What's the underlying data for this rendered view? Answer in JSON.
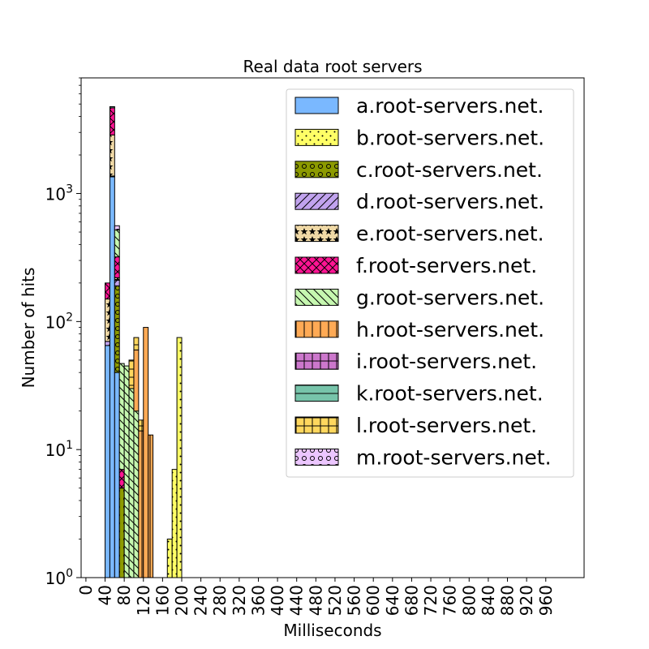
{
  "chart_data": {
    "type": "bar",
    "stacked": true,
    "title": "Real data root servers",
    "xlabel": "Milliseconds",
    "ylabel": "Number of hits",
    "y_scale": "log",
    "ylim": [
      1,
      8000
    ],
    "xlim": [
      -10,
      1040
    ],
    "bin_width": 10,
    "x_ticks": [
      0,
      40,
      80,
      120,
      160,
      200,
      240,
      280,
      320,
      360,
      400,
      440,
      480,
      520,
      560,
      600,
      640,
      680,
      720,
      760,
      800,
      840,
      880,
      920,
      960
    ],
    "y_ticks": [
      {
        "value": 1,
        "base": "10",
        "exp": "0"
      },
      {
        "value": 10,
        "base": "10",
        "exp": "1"
      },
      {
        "value": 100,
        "base": "10",
        "exp": "2"
      },
      {
        "value": 1000,
        "base": "10",
        "exp": "3"
      }
    ],
    "legend_position": "upper-right",
    "bin_starts": [
      40,
      50,
      60,
      70,
      80,
      90,
      100,
      110,
      120,
      130,
      170,
      180,
      190
    ],
    "series": [
      {
        "name": "a.root-servers.net.",
        "color": "#7ab8ff",
        "hatch": "none",
        "values": [
          65,
          1350,
          40,
          0,
          0,
          0,
          0,
          0,
          0,
          0,
          0,
          0,
          0
        ]
      },
      {
        "name": "b.root-servers.net.",
        "color": "#ffff66",
        "hatch": "dots",
        "values": [
          0,
          0,
          0,
          0,
          0,
          0,
          0,
          0,
          0,
          0,
          2,
          7,
          75
        ]
      },
      {
        "name": "c.root-servers.net.",
        "color": "#8c9a00",
        "hatch": "circles",
        "values": [
          0,
          0,
          150,
          5,
          0,
          0,
          0,
          0,
          0,
          0,
          0,
          0,
          0
        ]
      },
      {
        "name": "d.root-servers.net.",
        "color": "#c1a3ee",
        "hatch": "diag",
        "values": [
          5,
          20,
          20,
          0,
          0,
          0,
          0,
          0,
          0,
          0,
          0,
          0,
          0
        ]
      },
      {
        "name": "e.root-servers.net.",
        "color": "#f0d9a6",
        "hatch": "stars",
        "values": [
          80,
          1500,
          10,
          0,
          0,
          0,
          0,
          0,
          0,
          0,
          0,
          0,
          0
        ]
      },
      {
        "name": "f.root-servers.net.",
        "color": "#ff1493",
        "hatch": "cross",
        "values": [
          50,
          1800,
          100,
          2,
          0,
          0,
          0,
          0,
          0,
          0,
          0,
          0,
          0
        ]
      },
      {
        "name": "g.root-servers.net.",
        "color": "#c6f7b0",
        "hatch": "backdiag",
        "values": [
          0,
          0,
          200,
          40,
          45,
          30,
          20,
          0,
          0,
          0,
          0,
          0,
          0
        ]
      },
      {
        "name": "h.root-servers.net.",
        "color": "#ffaa55",
        "hatch": "vlines",
        "values": [
          0,
          0,
          0,
          0,
          0,
          0,
          40,
          14,
          90,
          13,
          0,
          0,
          0
        ]
      },
      {
        "name": "i.root-servers.net.",
        "color": "#cc77cc",
        "hatch": "grid",
        "values": [
          0,
          0,
          0,
          0,
          0,
          0,
          0,
          0,
          0,
          0,
          0,
          0,
          0
        ]
      },
      {
        "name": "k.root-servers.net.",
        "color": "#77c4aa",
        "hatch": "hlines",
        "values": [
          0,
          100,
          0,
          0,
          0,
          0,
          0,
          0,
          0,
          0,
          0,
          0,
          0
        ]
      },
      {
        "name": "l.root-servers.net.",
        "color": "#ffd75e",
        "hatch": "grid",
        "values": [
          0,
          0,
          0,
          0,
          0,
          20,
          15,
          3,
          0,
          0,
          0,
          0,
          0
        ]
      },
      {
        "name": "m.root-servers.net.",
        "color": "#ecc6ff",
        "hatch": "circles",
        "values": [
          0,
          0,
          40,
          0,
          0,
          0,
          0,
          0,
          0,
          0,
          0,
          0,
          0
        ]
      }
    ]
  }
}
